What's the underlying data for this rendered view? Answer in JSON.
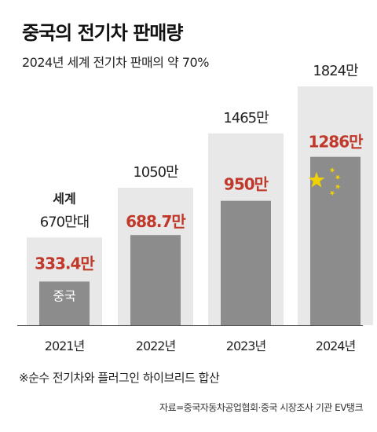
{
  "header": {
    "title": "중국의 전기차 판매량",
    "subtitle": "2024년 세계 전기차 판매의 약 70%"
  },
  "footnote": "※순수 전기차와 플러그인 하이브리드 합산",
  "source": "자료=중국자동차공업협회·중국 시장조사 기관 EV탱크",
  "colors": {
    "world_bar": "#e8e8e8",
    "china_bar": "#8c8c8c",
    "china_value": "#c0392b",
    "axis": "#555555",
    "flag_star": "#f2d100"
  },
  "chart_data": {
    "type": "bar",
    "categories": [
      "2021년",
      "2022년",
      "2023년",
      "2024년"
    ],
    "ylim": [
      0,
      1824
    ],
    "series": [
      {
        "name": "세계",
        "values": [
          670,
          1050,
          1465,
          1824
        ],
        "labels": [
          "670만대",
          "1050만",
          "1465만",
          "1824만"
        ]
      },
      {
        "name": "중국",
        "values": [
          333.4,
          688.7,
          950,
          1286
        ],
        "labels": [
          "333.4만",
          "688.7만",
          "950만",
          "1286만"
        ]
      }
    ],
    "annotations": {
      "world_series_label": "세계",
      "china_series_label": "중국",
      "flag_icon": "china-flag-stars-icon"
    }
  }
}
